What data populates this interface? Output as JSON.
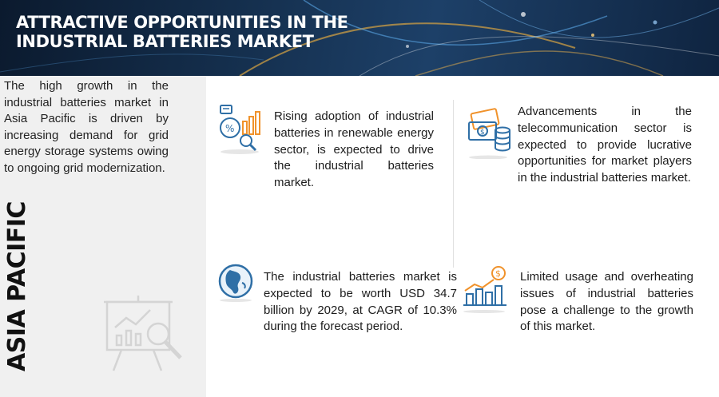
{
  "header": {
    "title_line1": "ATTRACTIVE OPPORTUNITIES IN THE",
    "title_line2": "INDUSTRIAL BATTERIES MARKET"
  },
  "sidebar": {
    "intro": "The high growth in the industrial batteries market in Asia Pacific is driven by increasing demand for grid energy storage systems owing to ongoing grid modernization.",
    "region_label": "ASIA PACIFIC",
    "watermark_icon": "presentation-board-icon"
  },
  "cards": [
    {
      "text": "Rising adoption of industrial batteries in renewable energy sector, is expected to drive the industrial batteries market.",
      "icon": "analytics-report-icon"
    },
    {
      "text": "Advancements in the telecommunication sector is expected to provide lucrative opportunities for market players in the industrial batteries market.",
      "icon": "money-coins-icon"
    },
    {
      "text": "The industrial batteries market is expected to be worth USD 34.7 billion by 2029, at CAGR of 10.3% during the forecast period.",
      "icon": "globe-icon"
    },
    {
      "text": "Limited usage and overheating issues of industrial batteries pose a challenge to the growth of this market.",
      "icon": "growth-chart-icon"
    }
  ],
  "colors": {
    "accent_orange": "#f0922b",
    "accent_blue": "#2f6fa6",
    "banner_dark": "#0b1a2e"
  }
}
